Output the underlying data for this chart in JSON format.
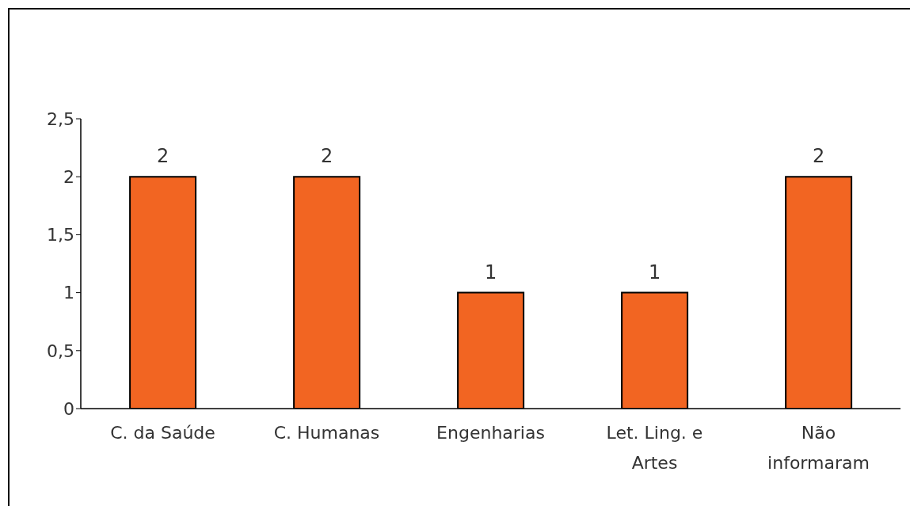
{
  "chart_data": {
    "type": "bar",
    "categories": [
      "C. da Saúde",
      "C. Humanas",
      "Engenharias",
      "Let. Ling. e Artes",
      "Não informaram"
    ],
    "values": [
      2,
      2,
      1,
      1,
      2
    ],
    "color": "#f26522",
    "ylim": [
      0,
      2.5
    ],
    "yticks": [
      0,
      {
        "value": 0.5,
        "label": "0,5"
      },
      1,
      {
        "value": 1.5,
        "label": "1,5"
      },
      2,
      {
        "value": 2.5,
        "label": "2,5"
      }
    ],
    "data_labels": true
  }
}
